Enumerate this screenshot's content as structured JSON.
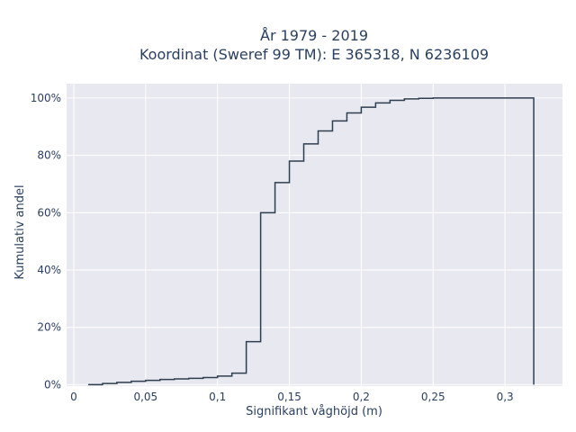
{
  "chart_data": {
    "type": "line",
    "line_shape": "step",
    "title": "År 1979 - 2019",
    "subtitle": "Koordinat (Sweref 99 TM): E 365318, N 6236109",
    "xlabel": "Signifikant våghöjd (m)",
    "ylabel": "Kumulativ andel",
    "xlim": [
      -0.005,
      0.34
    ],
    "ylim": [
      -0.005,
      1.05
    ],
    "x_ticks": [
      0,
      0.05,
      0.1,
      0.15,
      0.2,
      0.25,
      0.3
    ],
    "x_tick_labels": [
      "0",
      "0,05",
      "0,1",
      "0,15",
      "0,2",
      "0,25",
      "0,3"
    ],
    "y_ticks": [
      0,
      0.2,
      0.4,
      0.6,
      0.8,
      1.0
    ],
    "y_tick_labels": [
      "0%",
      "20%",
      "40%",
      "60%",
      "80%",
      "100%"
    ],
    "grid": true,
    "plot_background": "#e8e8f0",
    "line_color": "#2f3e4e",
    "series": [
      {
        "x": [
          0.01,
          0.02,
          0.03,
          0.04,
          0.05,
          0.06,
          0.07,
          0.08,
          0.09,
          0.1,
          0.11,
          0.12,
          0.13,
          0.14,
          0.15,
          0.16,
          0.17,
          0.18,
          0.19,
          0.2,
          0.21,
          0.22,
          0.23,
          0.24,
          0.25,
          0.26,
          0.27,
          0.28,
          0.29,
          0.3,
          0.31,
          0.32
        ],
        "y": [
          0.0,
          0.004,
          0.008,
          0.012,
          0.015,
          0.018,
          0.02,
          0.022,
          0.025,
          0.03,
          0.04,
          0.15,
          0.6,
          0.705,
          0.78,
          0.84,
          0.885,
          0.92,
          0.948,
          0.968,
          0.983,
          0.992,
          0.997,
          0.999,
          1.0,
          1.0,
          1.0,
          1.0,
          1.0,
          1.0,
          1.0,
          0.0
        ]
      }
    ]
  }
}
